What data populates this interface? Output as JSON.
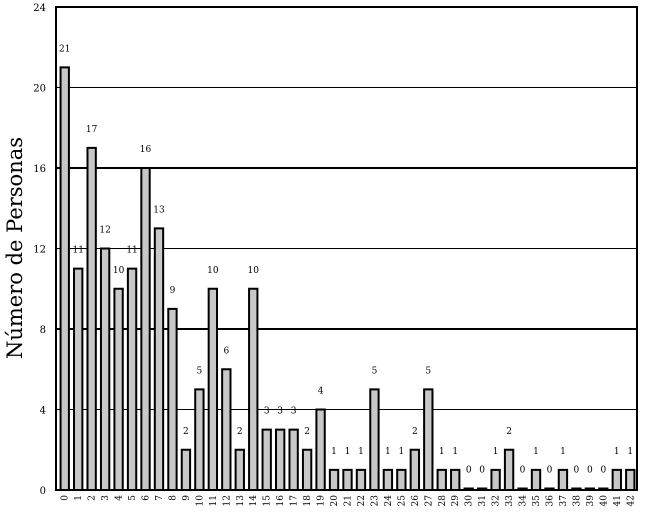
{
  "chart_data": {
    "type": "bar",
    "ylabel": "Número de Personas",
    "xlabel": "",
    "ylim": [
      0,
      24
    ],
    "yticks": [
      "0",
      "4",
      "8",
      "12",
      "16",
      "20",
      "24"
    ],
    "grid": true,
    "categories": [
      "0",
      "1",
      "2",
      "3",
      "4",
      "5",
      "6",
      "7",
      "8",
      "9",
      "10",
      "11",
      "12",
      "13",
      "14",
      "15",
      "16",
      "17",
      "18",
      "19",
      "20",
      "21",
      "22",
      "23",
      "24",
      "25",
      "26",
      "27",
      "28",
      "29",
      "30",
      "31",
      "32",
      "33",
      "34",
      "35",
      "36",
      "37",
      "38",
      "39",
      "40",
      "41",
      "42"
    ],
    "values": [
      21,
      11,
      17,
      12,
      10,
      11,
      16,
      13,
      9,
      2,
      5,
      10,
      6,
      2,
      10,
      3,
      3,
      3,
      2,
      4,
      1,
      1,
      1,
      5,
      1,
      1,
      2,
      5,
      1,
      1,
      0,
      0,
      1,
      2,
      0,
      1,
      0,
      1,
      0,
      0,
      0,
      1,
      1
    ],
    "data_labels": [
      "21",
      "11",
      "17",
      "12",
      "10",
      "11",
      "16",
      "13",
      "9",
      "2",
      "5",
      "10",
      "6",
      "2",
      "10",
      "3",
      "3",
      "3",
      "2",
      "4",
      "1",
      "1",
      "1",
      "5",
      "1",
      "1",
      "2",
      "5",
      "1",
      "1",
      "0",
      "0",
      "1",
      "2",
      "0",
      "1",
      "0",
      "1",
      "0",
      "0",
      "0",
      "1",
      "1"
    ],
    "bar_color": "#c8c8c8",
    "edge_color": "#000000"
  }
}
